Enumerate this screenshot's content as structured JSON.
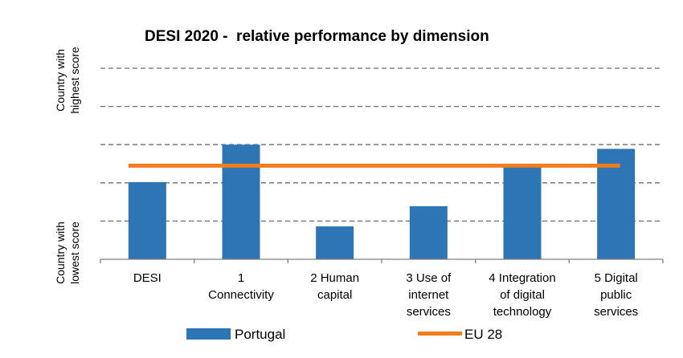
{
  "chart_data": {
    "type": "bar",
    "title": "DESI 2020 -  relative performance by dimension",
    "categories": [
      [
        "DESI"
      ],
      [
        "1",
        "Connectivity"
      ],
      [
        "2 Human",
        "capital"
      ],
      [
        "3 Use of",
        "internet",
        "services"
      ],
      [
        "4 Integration",
        "of digital",
        "technology"
      ],
      [
        "5 Digital",
        "public",
        "services"
      ]
    ],
    "y_axis_labels": {
      "top": [
        "Country with",
        "highest score"
      ],
      "bottom": [
        "Country with",
        "lowest score"
      ]
    },
    "ylim": [
      0,
      5
    ],
    "grid": true,
    "legend_position": "bottom",
    "series": [
      {
        "name": "Portugal",
        "type": "bar",
        "color": "#2e75b6",
        "values": [
          2.02,
          3.0,
          0.86,
          1.39,
          2.45,
          2.89
        ]
      },
      {
        "name": "EU 28",
        "type": "line",
        "color": "#f07e1f",
        "value": 2.45
      }
    ]
  }
}
